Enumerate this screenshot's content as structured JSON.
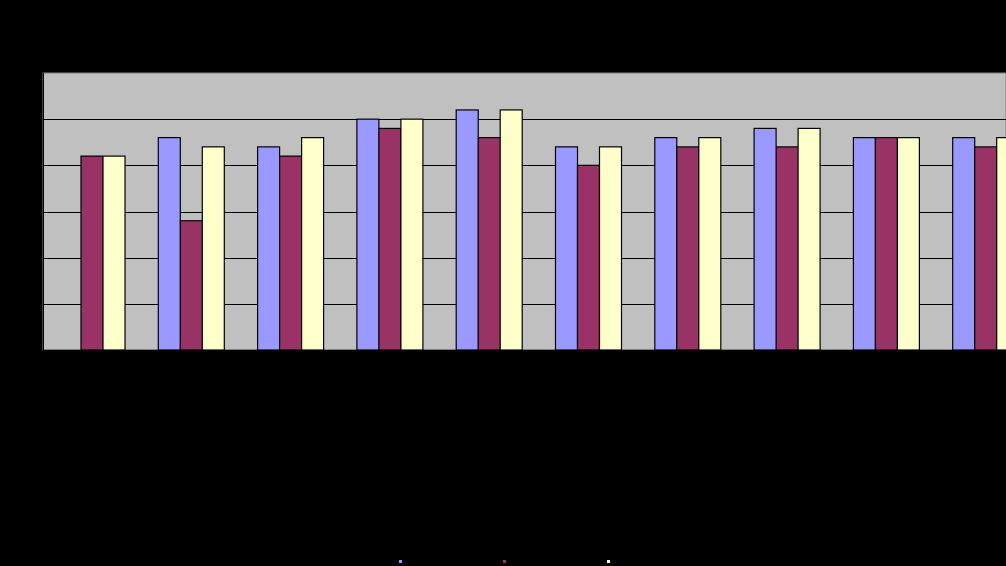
{
  "chart_data": {
    "type": "bar",
    "categories": [
      "",
      "",
      "",
      "",
      "",
      "",
      "",
      "",
      "",
      ""
    ],
    "series": [
      {
        "color": "#9999FF",
        "values": [
          0.0,
          4.6,
          4.4,
          5.0,
          5.2,
          4.4,
          4.6,
          4.8,
          4.6,
          4.6
        ]
      },
      {
        "color": "#993366",
        "values": [
          4.2,
          2.8,
          4.2,
          4.8,
          4.6,
          4.0,
          4.4,
          4.4,
          4.6,
          4.4
        ]
      },
      {
        "color": "#FFFFCC",
        "values": [
          4.2,
          4.4,
          4.6,
          5.0,
          5.2,
          4.4,
          4.6,
          4.8,
          4.6,
          4.6
        ]
      }
    ],
    "ylim": [
      0,
      6
    ],
    "y_grid_step": 1,
    "grid": true,
    "plot_background": "#C0C0C0",
    "legend_placement": "bottom-center"
  }
}
